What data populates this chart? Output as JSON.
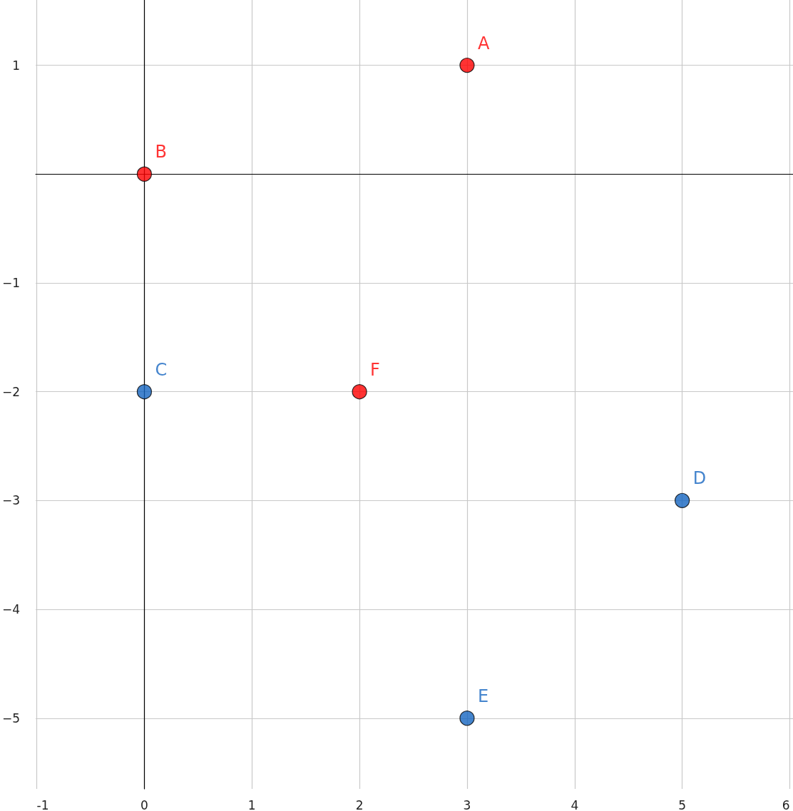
{
  "chart_data": {
    "type": "scatter",
    "xlim": [
      -1.01,
      6.03
    ],
    "ylim": [
      -5.65,
      1.6
    ],
    "xticks": [
      {
        "value": -1,
        "label": "-1"
      },
      {
        "value": 0,
        "label": "0"
      },
      1,
      2,
      3,
      4,
      5,
      6
    ],
    "yticks": [
      {
        "value": -5,
        "label": "−5"
      },
      {
        "value": -4,
        "label": "−4"
      },
      {
        "value": -3,
        "label": "−3"
      },
      {
        "value": -2,
        "label": "−2"
      },
      {
        "value": -1,
        "label": "−1"
      },
      {
        "value": 0,
        "label": null
      },
      1
    ],
    "grid": true,
    "marker": "circle",
    "series": [
      {
        "color": "#ff0000",
        "x": [
          3,
          0,
          2
        ],
        "values": [
          1,
          0,
          -2
        ]
      },
      {
        "color": "#1565c0",
        "x": [
          0,
          5,
          3
        ],
        "values": [
          -2,
          -3,
          -5
        ]
      }
    ],
    "annotations": [
      {
        "text": "A",
        "x": 3,
        "y": 1
      },
      {
        "text": "B",
        "x": 0,
        "y": 0
      },
      {
        "text": "C",
        "x": 0,
        "y": -2
      },
      {
        "text": "D",
        "x": 5,
        "y": -3
      },
      {
        "text": "E",
        "x": 3,
        "y": -5
      },
      {
        "text": "F",
        "x": 2,
        "y": -2
      }
    ]
  }
}
